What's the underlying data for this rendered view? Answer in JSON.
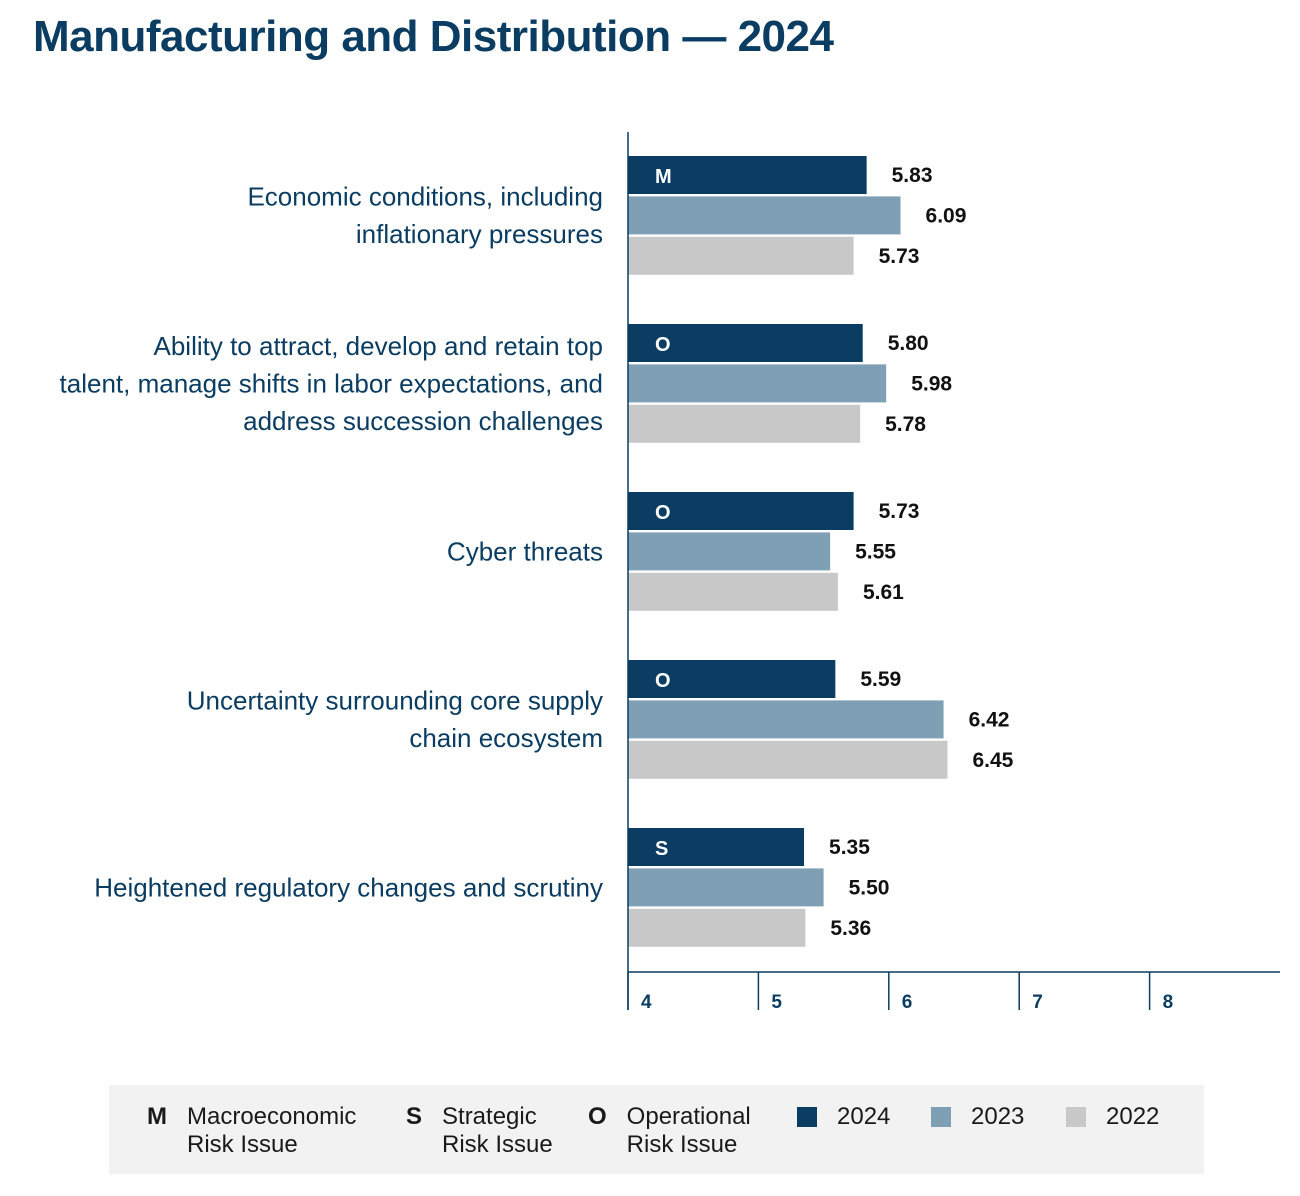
{
  "title": "Manufacturing and Distribution — 2024",
  "colors": {
    "2024": "#0b3d62",
    "2023": "#7f9fb5",
    "2022": "#c8c8c8",
    "axis": "#0b3d62"
  },
  "chart_data": {
    "type": "bar",
    "orientation": "horizontal",
    "title": "Manufacturing and Distribution — 2024",
    "xlim": [
      4,
      9
    ],
    "ticks": [
      4,
      5,
      6,
      7,
      8
    ],
    "categories": [
      {
        "label": [
          "Economic conditions, including",
          "inflationary pressures"
        ],
        "code": "M"
      },
      {
        "label": [
          "Ability to attract, develop and retain top",
          "talent, manage shifts in labor expectations, and",
          "address succession challenges"
        ],
        "code": "O"
      },
      {
        "label": [
          "Cyber threats"
        ],
        "code": "O"
      },
      {
        "label": [
          "Uncertainty surrounding core supply",
          "chain ecosystem"
        ],
        "code": "O"
      },
      {
        "label": [
          "Heightened regulatory changes and scrutiny"
        ],
        "code": "S"
      }
    ],
    "series": [
      {
        "name": "2024",
        "values": [
          5.83,
          5.8,
          5.73,
          5.59,
          5.35
        ],
        "labels": [
          "5.83",
          "5.80",
          "5.73",
          "5.59",
          "5.35"
        ]
      },
      {
        "name": "2023",
        "values": [
          6.09,
          5.98,
          5.55,
          6.42,
          5.5
        ],
        "labels": [
          "6.09",
          "5.98",
          "5.55",
          "6.42",
          "5.50"
        ]
      },
      {
        "name": "2022",
        "values": [
          5.73,
          5.78,
          5.61,
          6.45,
          5.36
        ],
        "labels": [
          "5.73",
          "5.78",
          "5.61",
          "6.45",
          "5.36"
        ]
      }
    ]
  },
  "legend": {
    "codes": [
      {
        "code": "M",
        "text": "Macroeconomic\nRisk Issue"
      },
      {
        "code": "S",
        "text": "Strategic\nRisk Issue"
      },
      {
        "code": "O",
        "text": "Operational\nRisk Issue"
      }
    ],
    "years": [
      "2024",
      "2023",
      "2022"
    ]
  }
}
